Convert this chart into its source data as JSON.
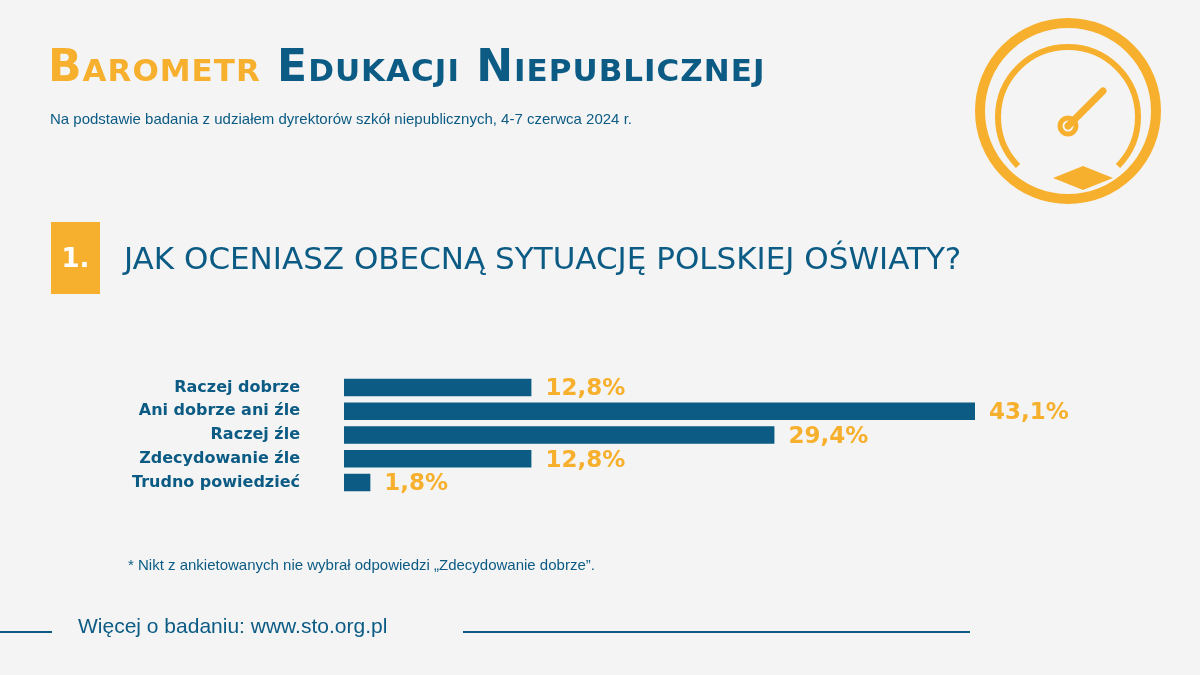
{
  "chart_data": {
    "type": "bar",
    "orientation": "horizontal",
    "title": "Barometr Edukacji Niepublicznej",
    "subtitle": "Na podstawie badania z udziałem dyrektorów szkół niepublicznych, 4-7 czerwca 2024 r.",
    "annotations": [
      "1.",
      "JAK OCENIASZ OBECNĄ SYTUACJĘ POLSKIEJ OŚWIATY?",
      "* Nikt z ankietowanych nie wybrał odpowiedzi „Zdecydowanie dobrze”.",
      "Więcej o badaniu: www.sto.org.pl"
    ],
    "categories": [
      "Raczej dobrze",
      "Ani dobrze ani źle",
      "Raczej źle",
      "Zdecydowanie źle",
      "Trudno powiedzieć"
    ],
    "values": [
      12.8,
      43.1,
      29.4,
      12.8,
      1.8
    ],
    "value_labels": [
      "12,8%",
      "43,1%",
      "29,4%",
      "12,8%",
      "1,8%"
    ],
    "color": "#0b5b84",
    "legend": false,
    "tick_labels": "y"
  }
}
